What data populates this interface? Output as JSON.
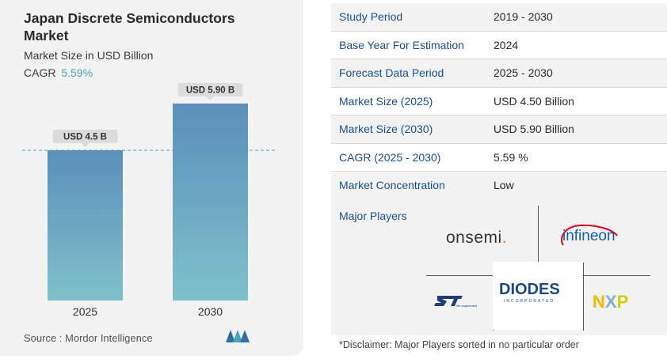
{
  "title": "Japan Discrete Semiconductors Market",
  "subtitle": "Market Size in USD Billion",
  "cagr": {
    "label": "CAGR",
    "value": "5.59%"
  },
  "chart_data": {
    "type": "bar",
    "categories": [
      "2025",
      "2030"
    ],
    "values": [
      4.5,
      5.9
    ],
    "value_labels": [
      "USD 4.5 B",
      "USD 5.90 B"
    ],
    "reference_line": 4.5,
    "ylim": [
      0,
      6.5
    ],
    "gradient": {
      "top": "#5b8fba",
      "bottom": "#7fc1cb"
    }
  },
  "source": "Source :  Mordor Intelligence",
  "info_table": [
    {
      "label": "Study Period",
      "value": "2019 - 2030"
    },
    {
      "label": "Base Year For Estimation",
      "value": "2024"
    },
    {
      "label": "Forecast Data Period",
      "value": "2025 - 2030"
    },
    {
      "label": "Market Size (2025)",
      "value": "USD 4.50 Billion"
    },
    {
      "label": "Market Size (2030)",
      "value": "USD 5.90 Billion"
    },
    {
      "label": "CAGR (2025 - 2030)",
      "value": "5.59 %"
    },
    {
      "label": "Market Concentration",
      "value": "Low"
    }
  ],
  "players": {
    "title": "Major Players",
    "onsemi": "onsemi",
    "infineon": "infineon",
    "diodes": "DIODES",
    "diodes_sub": "INCORPORATED",
    "st": "STMicroelectronics",
    "nxp": "NXP"
  },
  "disclaimer": "*Disclaimer: Major Players sorted in no particular order"
}
